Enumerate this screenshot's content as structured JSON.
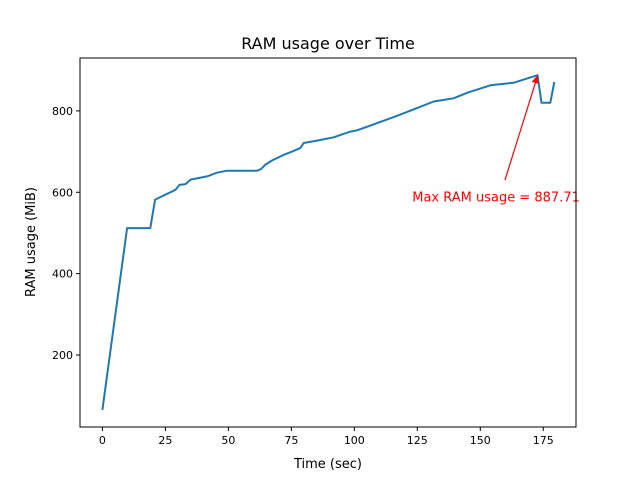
{
  "chart_data": {
    "type": "line",
    "title": "RAM usage over Time",
    "xlabel": "Time (sec)",
    "ylabel": "RAM usage (MiB)",
    "xlim": [
      -8.9,
      188
    ],
    "ylim": [
      23,
      930
    ],
    "xticks": [
      0,
      25,
      50,
      75,
      100,
      125,
      150,
      175
    ],
    "yticks": [
      200,
      400,
      600,
      800
    ],
    "grid": false,
    "series": [
      {
        "name": "RAM usage",
        "color": "#1f77b4",
        "x": [
          0,
          9.8,
          19,
          20.9,
          29,
          30.6,
          33,
          35,
          41.5,
          45.5,
          49.5,
          61.4,
          63,
          64.7,
          67.3,
          72,
          76,
          78.6,
          79.9,
          85.2,
          91.8,
          98.4,
          101,
          105,
          117,
          124,
          131.5,
          139.4,
          145,
          154,
          163.2,
          172.7,
          174.3,
          177.8,
          179.4
        ],
        "y": [
          65,
          512,
          512,
          582,
          606,
          618,
          620,
          631,
          639,
          648,
          653,
          653,
          657,
          668,
          678,
          692,
          702,
          709,
          721,
          727,
          735,
          749,
          752,
          761,
          788,
          805,
          823,
          831,
          845,
          863,
          869,
          887.71,
          820,
          820,
          871
        ]
      }
    ],
    "annotation": {
      "text": "Max RAM usage = 887.71",
      "color": "#ff0000",
      "point": [
        172.7,
        887.71
      ],
      "text_pos": [
        123,
        590
      ]
    }
  }
}
